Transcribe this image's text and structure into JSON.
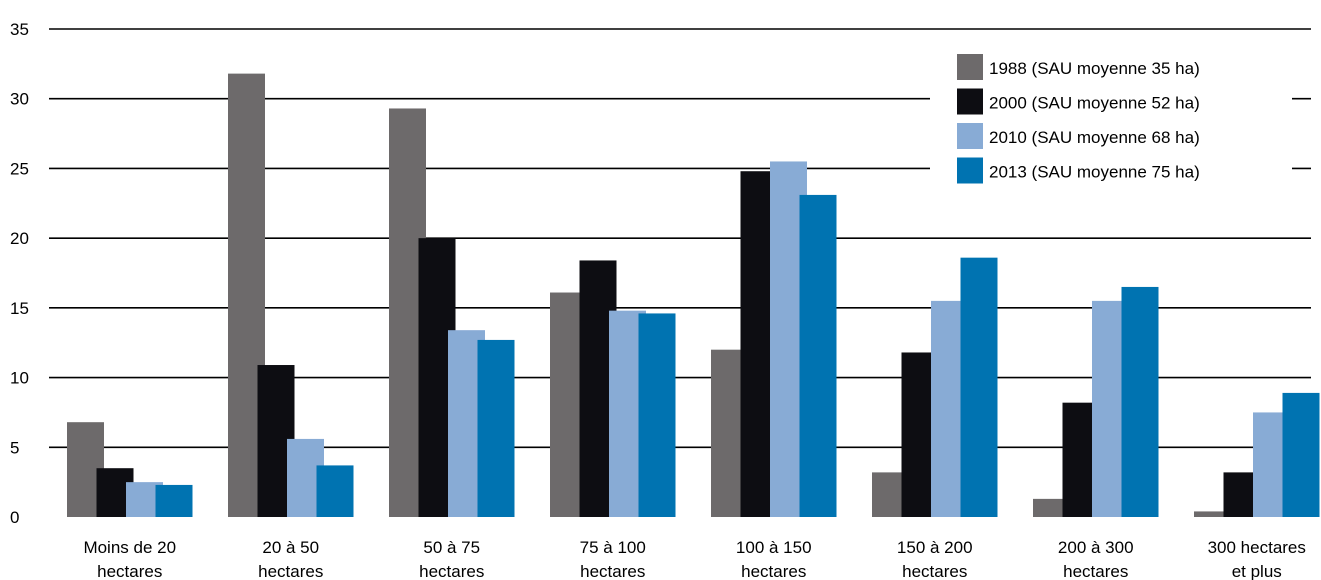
{
  "chart_data": {
    "type": "bar",
    "title": "",
    "xlabel": "",
    "ylabel": "",
    "ylim": [
      0,
      35
    ],
    "yticks": [
      0,
      5,
      10,
      15,
      20,
      25,
      30,
      35
    ],
    "grid": true,
    "legend_position": "top-right",
    "categories": [
      [
        "Moins de 20",
        "hectares"
      ],
      [
        "20 à 50",
        "hectares"
      ],
      [
        "50 à 75",
        "hectares"
      ],
      [
        "75 à 100",
        "hectares"
      ],
      [
        "100 à 150",
        "hectares"
      ],
      [
        "150 à 200",
        "hectares"
      ],
      [
        "200 à 300",
        "hectares"
      ],
      [
        "300 hectares",
        "et plus"
      ]
    ],
    "series": [
      {
        "name": "1988 (SAU moyenne 35 ha)",
        "color": "#6d6a6b",
        "values": [
          6.8,
          31.8,
          29.3,
          16.1,
          12.0,
          3.2,
          1.3,
          0.4
        ]
      },
      {
        "name": "2000 (SAU moyenne 52 ha)",
        "color": "#0d0d12",
        "values": [
          3.5,
          10.9,
          20.0,
          18.4,
          24.8,
          11.8,
          8.2,
          3.2
        ]
      },
      {
        "name": "2010 (SAU moyenne 68 ha)",
        "color": "#88abd5",
        "values": [
          2.5,
          5.6,
          13.4,
          14.8,
          25.5,
          15.5,
          15.5,
          7.5
        ]
      },
      {
        "name": "2013 (SAU moyenne 75 ha)",
        "color": "#0073b1",
        "values": [
          2.3,
          3.7,
          12.7,
          14.6,
          23.1,
          18.6,
          16.5,
          8.9
        ]
      }
    ]
  }
}
